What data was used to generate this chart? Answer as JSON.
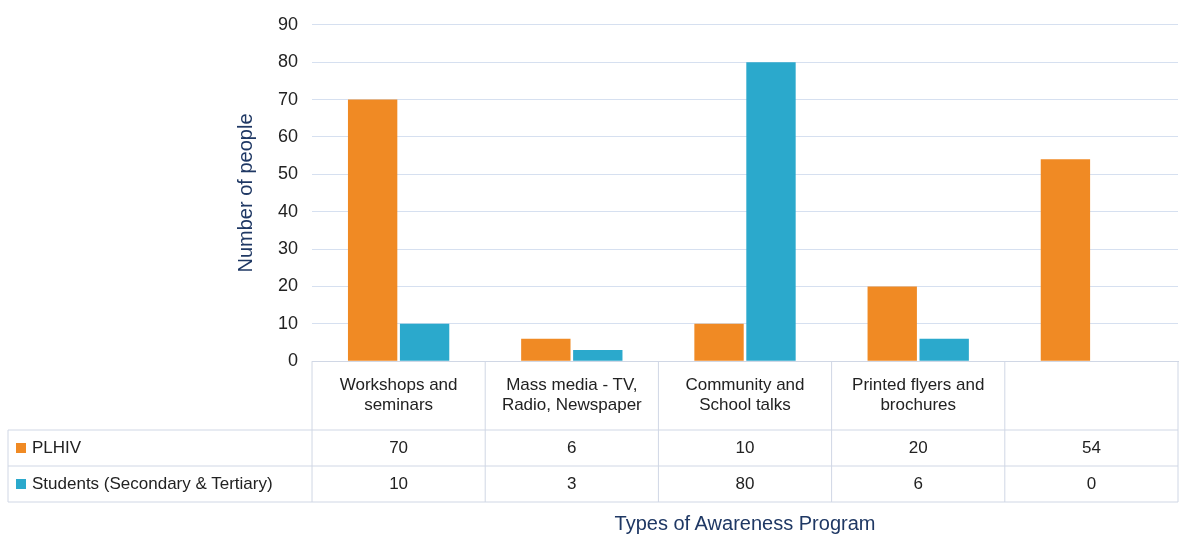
{
  "chart_data": {
    "type": "bar",
    "xlabel": "Types of Awareness Program",
    "ylabel": "Number of people",
    "categories": [
      "Workshops and seminars",
      "Mass media - TV, Radio, Newspaper",
      "Community and School talks",
      "Printed flyers and brochures",
      null
    ],
    "series": [
      {
        "name": "PLHIV",
        "color": "#f08a24",
        "values": [
          70,
          6,
          10,
          20,
          54
        ]
      },
      {
        "name": "Students (Secondary & Tertiary)",
        "color": "#2ba9cc",
        "values": [
          10,
          3,
          80,
          6,
          0
        ]
      }
    ],
    "ylim": [
      0,
      90
    ],
    "yticks": [
      0,
      10,
      20,
      30,
      40,
      50,
      60,
      70,
      80,
      90
    ],
    "grid": "y",
    "legend": "bottom",
    "data_labels": true
  }
}
